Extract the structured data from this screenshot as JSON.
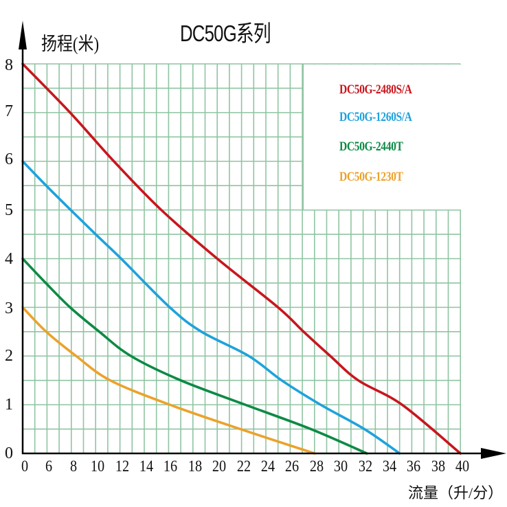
{
  "title": "DC50G系列",
  "y_axis_title": "扬程(米)",
  "x_axis_title": "流量（升/分）",
  "colors": {
    "grid": "#8fc4a2",
    "axis": "#000000",
    "red": "#c8161d",
    "blue": "#1ea2dc",
    "green": "#0d8a45",
    "orange": "#eba22b"
  },
  "legend": [
    {
      "label": "DC50G-2480S/A",
      "color": "#c8161d"
    },
    {
      "label": "DC50G-1260S/A",
      "color": "#1ea2dc"
    },
    {
      "label": "DC50G-2440T",
      "color": "#0d8a45"
    },
    {
      "label": "DC50G-1230T",
      "color": "#eba22b"
    }
  ],
  "y_ticks": [
    "0",
    "1",
    "2",
    "3",
    "4",
    "5",
    "6",
    "7",
    "8"
  ],
  "x_ticks": [
    "0",
    "6",
    "8",
    "10",
    "12",
    "14",
    "16",
    "18",
    "20",
    "22",
    "24",
    "26",
    "28",
    "30",
    "32",
    "34",
    "36",
    "38",
    "40"
  ],
  "chart_data": {
    "type": "line",
    "title": "DC50G系列",
    "xlabel": "流量（升/分）",
    "ylabel": "扬程(米)",
    "x_tick_labels": [
      "0",
      "6",
      "8",
      "10",
      "12",
      "14",
      "16",
      "18",
      "20",
      "22",
      "24",
      "26",
      "28",
      "30",
      "32",
      "34",
      "36",
      "38",
      "40"
    ],
    "xlim": [
      0,
      40
    ],
    "ylim": [
      0,
      8
    ],
    "grid": true,
    "legend_position": "upper right (inset box)",
    "series": [
      {
        "name": "DC50G-2480S/A",
        "color": "#c8161d",
        "x": [
          0,
          7.9,
          11.5,
          15.4,
          20.0,
          25.0,
          27.1,
          29.3,
          31.6,
          35.2,
          40.0
        ],
        "y": [
          8.0,
          7.0,
          6.0,
          5.0,
          4.0,
          3.0,
          2.5,
          2.0,
          1.5,
          1.0,
          0.0
        ]
      },
      {
        "name": "DC50G-1260S/A",
        "color": "#1ea2dc",
        "x": [
          0,
          5.8,
          7.95,
          10.0,
          12.1,
          16.1,
          18.7,
          22.6,
          25.3,
          28.5,
          32.1,
          35.0
        ],
        "y": [
          6.0,
          5.5,
          5.0,
          4.5,
          4.0,
          3.0,
          2.5,
          2.0,
          1.5,
          1.0,
          0.5,
          0.0
        ]
      },
      {
        "name": "DC50G-2440T",
        "color": "#0d8a45",
        "x": [
          0,
          5.7,
          7.9,
          10.3,
          12.9,
          17.0,
          22.3,
          27.7,
          32.3
        ],
        "y": [
          4.0,
          3.5,
          3.0,
          2.5,
          2.0,
          1.5,
          1.0,
          0.5,
          0.0
        ]
      },
      {
        "name": "DC50G-1230T",
        "color": "#eba22b",
        "x": [
          0,
          5.8,
          8.4,
          11.2,
          16.1,
          21.9,
          28.0
        ],
        "y": [
          3.0,
          2.5,
          2.0,
          1.5,
          1.0,
          0.5,
          0.0
        ]
      }
    ]
  }
}
